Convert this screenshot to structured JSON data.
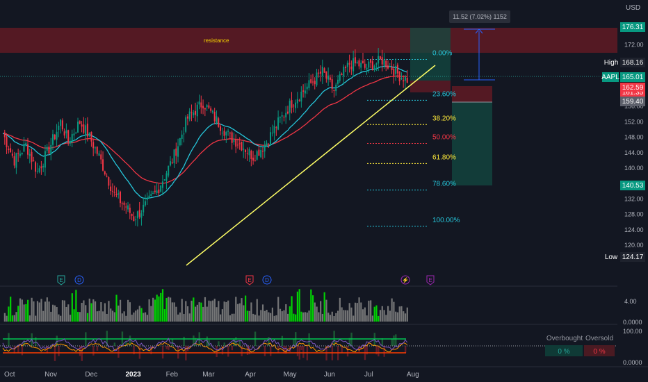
{
  "chart_data": {
    "type": "candlestick",
    "symbol": "AAPL",
    "currency": "USD",
    "y_axis": {
      "range": [
        118,
        180
      ],
      "ticks": [
        172,
        168,
        164,
        160,
        156,
        152,
        148,
        144,
        140,
        136,
        132,
        128,
        124,
        120
      ],
      "tick_labels": [
        "172.00",
        "168.00",
        "164.00",
        "160.00",
        "156.00",
        "152.00",
        "148.00",
        "144.00",
        "140.00",
        "136.00",
        "132.00",
        "128.00",
        "124.00",
        "120.00"
      ]
    },
    "x_axis": {
      "labels": [
        "Oct",
        "Nov",
        "Dec",
        "2023",
        "Feb",
        "Mar",
        "Apr",
        "May",
        "Jun",
        "Jul",
        "Aug"
      ],
      "month_index": [
        0,
        21,
        42,
        63,
        84,
        103,
        125,
        145,
        166,
        187,
        209
      ]
    },
    "price_labels": {
      "currency": "USD",
      "target": "176.31",
      "high_tag": "High",
      "high": "168.16",
      "symbol_tag": "AAPL",
      "current": "165.01",
      "red_a": "162.59",
      "red_b": "161.35",
      "entry": "159.40",
      "stop": "140.53",
      "low_tag": "Low",
      "low": "124.17"
    },
    "measure_label": "11.52 (7.02%) 1152",
    "resistance_label": "resistance",
    "fib_levels": [
      {
        "label": "0.00%",
        "price": 168.2
      },
      {
        "label": "23.60%",
        "price": 157.6
      },
      {
        "label": "38.20%",
        "price": 151.3
      },
      {
        "label": "50.00%",
        "price": 146.4
      },
      {
        "label": "61.80%",
        "price": 141.2
      },
      {
        "label": "78.60%",
        "price": 134.3
      },
      {
        "label": "100.00%",
        "price": 124.9
      }
    ],
    "event_markers": [
      "E",
      "D",
      "E",
      "D",
      "⚡",
      "E"
    ],
    "volume_axis": {
      "ticks": [
        "4.00",
        "0.0000"
      ]
    },
    "oscillator_axis": {
      "ticks": [
        "100.00",
        "0.0000"
      ]
    },
    "oscillator_table": {
      "headers": [
        "Overbought",
        "Oversold"
      ],
      "values": [
        "0 %",
        "0 %"
      ]
    },
    "series": [
      {
        "name": "price",
        "type": "candlestick"
      },
      {
        "name": "ema_fast",
        "color": "#26c6da"
      },
      {
        "name": "ema_slow",
        "color": "#f23645"
      }
    ],
    "colors": {
      "up": "#089981",
      "down": "#f23645",
      "volume_high": "#00e600",
      "volume": "#808080",
      "trendline": "#ffff66",
      "resistance": "#8a1c28"
    }
  }
}
